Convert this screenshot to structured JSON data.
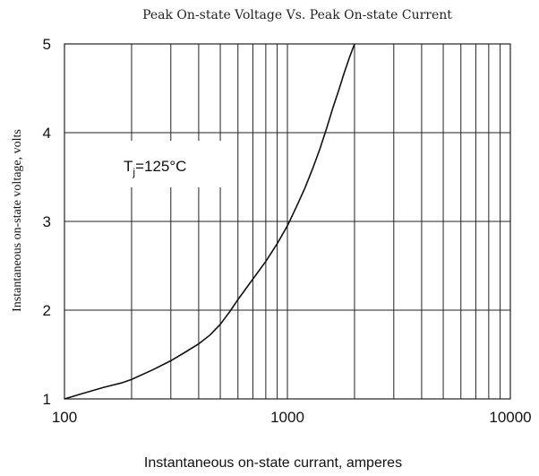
{
  "chart_data": {
    "type": "line",
    "title": "Peak On-state Voltage Vs. Peak On-state Current",
    "xlabel": "Instantaneous on-state  currant, amperes",
    "ylabel": "Instantaneous on-state voltage, volts",
    "x_scale": "log",
    "xlim": [
      100,
      10000
    ],
    "ylim": [
      1,
      5
    ],
    "x_ticks": [
      "100",
      "1000",
      "10000"
    ],
    "y_ticks": [
      "1",
      "2",
      "3",
      "4",
      "5"
    ],
    "grid": true,
    "annotation": {
      "prefix": "T",
      "subscript": "j",
      "suffix": "=125°C"
    },
    "series": [
      {
        "x": [
          100,
          120,
          150,
          180,
          200,
          250,
          300,
          350,
          400,
          450,
          500,
          550,
          600,
          700,
          800,
          900,
          1000,
          1100,
          1200,
          1300,
          1400,
          1500,
          1600,
          1700,
          1800,
          1900,
          2000
        ],
        "y": [
          1.0,
          1.06,
          1.13,
          1.18,
          1.22,
          1.33,
          1.43,
          1.53,
          1.62,
          1.72,
          1.84,
          1.98,
          2.12,
          2.35,
          2.55,
          2.75,
          2.95,
          3.17,
          3.38,
          3.6,
          3.82,
          4.05,
          4.28,
          4.48,
          4.68,
          4.85,
          5.0
        ]
      }
    ]
  }
}
